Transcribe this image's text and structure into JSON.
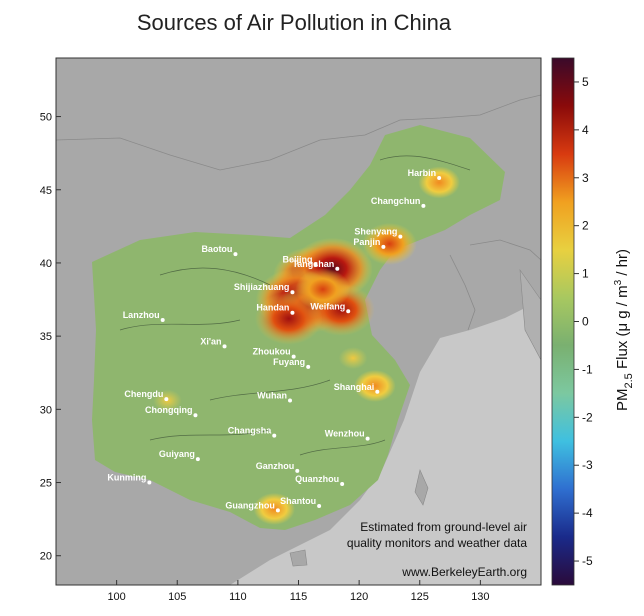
{
  "title": "Sources of Air Pollution in China",
  "note_lines": [
    "Estimated from ground-level air",
    "quality monitors and weather data"
  ],
  "website": "www.BerkeleyEarth.org",
  "axes": {
    "x_ticks": [
      100,
      105,
      110,
      115,
      120,
      125,
      130
    ],
    "y_ticks": [
      20,
      25,
      30,
      35,
      40,
      45,
      50
    ],
    "xlim": [
      95,
      135
    ],
    "ylim": [
      18,
      54
    ]
  },
  "colorbar": {
    "ticks": [
      5,
      4,
      3,
      2,
      1,
      0,
      -1,
      -2,
      -3,
      -4,
      -5
    ],
    "range": [
      -5.5,
      5.5
    ],
    "label_prefix": "PM",
    "label_sub": "2.5",
    "label_mid": " Flux (μ g / m",
    "label_sup": "3",
    "label_end": " / hr)",
    "colors": [
      "#2a0a3a",
      "#1a2a8a",
      "#2f6fd0",
      "#3fc0e0",
      "#7cc8a0",
      "#7ab070",
      "#a8c860",
      "#e8d040",
      "#f0a020",
      "#d83a10",
      "#8a0a0a",
      "#3a0a2a"
    ]
  },
  "colors": {
    "land": "#a8a8a8",
    "sea": "#c8c8c8",
    "field_base": "#8fb66e"
  },
  "cities": [
    {
      "name": "Harbin",
      "lon": 126.6,
      "lat": 45.8
    },
    {
      "name": "Changchun",
      "lon": 125.3,
      "lat": 43.9
    },
    {
      "name": "Shenyang",
      "lon": 123.4,
      "lat": 41.8
    },
    {
      "name": "Panjin",
      "lon": 122.0,
      "lat": 41.1
    },
    {
      "name": "Baotou",
      "lon": 109.8,
      "lat": 40.6
    },
    {
      "name": "Beijing",
      "lon": 116.4,
      "lat": 39.9
    },
    {
      "name": "Tangshan",
      "lon": 118.2,
      "lat": 39.6
    },
    {
      "name": "Shijiazhuang",
      "lon": 114.5,
      "lat": 38.0
    },
    {
      "name": "Handan",
      "lon": 114.5,
      "lat": 36.6
    },
    {
      "name": "Weifang",
      "lon": 119.1,
      "lat": 36.7
    },
    {
      "name": "Lanzhou",
      "lon": 103.8,
      "lat": 36.1
    },
    {
      "name": "Xi'an",
      "lon": 108.9,
      "lat": 34.3
    },
    {
      "name": "Zhoukou",
      "lon": 114.6,
      "lat": 33.6
    },
    {
      "name": "Fuyang",
      "lon": 115.8,
      "lat": 32.9
    },
    {
      "name": "Shanghai",
      "lon": 121.5,
      "lat": 31.2
    },
    {
      "name": "Chengdu",
      "lon": 104.1,
      "lat": 30.7
    },
    {
      "name": "Wuhan",
      "lon": 114.3,
      "lat": 30.6
    },
    {
      "name": "Chongqing",
      "lon": 106.5,
      "lat": 29.6
    },
    {
      "name": "Changsha",
      "lon": 113.0,
      "lat": 28.2
    },
    {
      "name": "Wenzhou",
      "lon": 120.7,
      "lat": 28.0
    },
    {
      "name": "Guiyang",
      "lon": 106.7,
      "lat": 26.6
    },
    {
      "name": "Ganzhou",
      "lon": 114.9,
      "lat": 25.8
    },
    {
      "name": "Quanzhou",
      "lon": 118.6,
      "lat": 24.9
    },
    {
      "name": "Kunming",
      "lon": 102.7,
      "lat": 25.0
    },
    {
      "name": "Guangzhou",
      "lon": 113.3,
      "lat": 23.1
    },
    {
      "name": "Shantou",
      "lon": 116.7,
      "lat": 23.4
    }
  ],
  "hotspots": [
    {
      "lon": 116.2,
      "lat": 39.0,
      "value": 5
    },
    {
      "lon": 117.8,
      "lat": 39.6,
      "value": 5
    },
    {
      "lon": 114.8,
      "lat": 37.5,
      "value": 5
    },
    {
      "lon": 116.0,
      "lat": 37.0,
      "value": 4
    },
    {
      "lon": 118.5,
      "lat": 36.8,
      "value": 4
    },
    {
      "lon": 114.2,
      "lat": 36.2,
      "value": 4
    },
    {
      "lon": 117.0,
      "lat": 38.2,
      "value": 3
    },
    {
      "lon": 122.5,
      "lat": 41.3,
      "value": 3
    },
    {
      "lon": 126.6,
      "lat": 45.5,
      "value": 2
    },
    {
      "lon": 121.3,
      "lat": 31.6,
      "value": 2
    },
    {
      "lon": 119.5,
      "lat": 33.5,
      "value": 1
    },
    {
      "lon": 113.0,
      "lat": 23.2,
      "value": 2
    },
    {
      "lon": 104.2,
      "lat": 30.6,
      "value": 1
    }
  ]
}
